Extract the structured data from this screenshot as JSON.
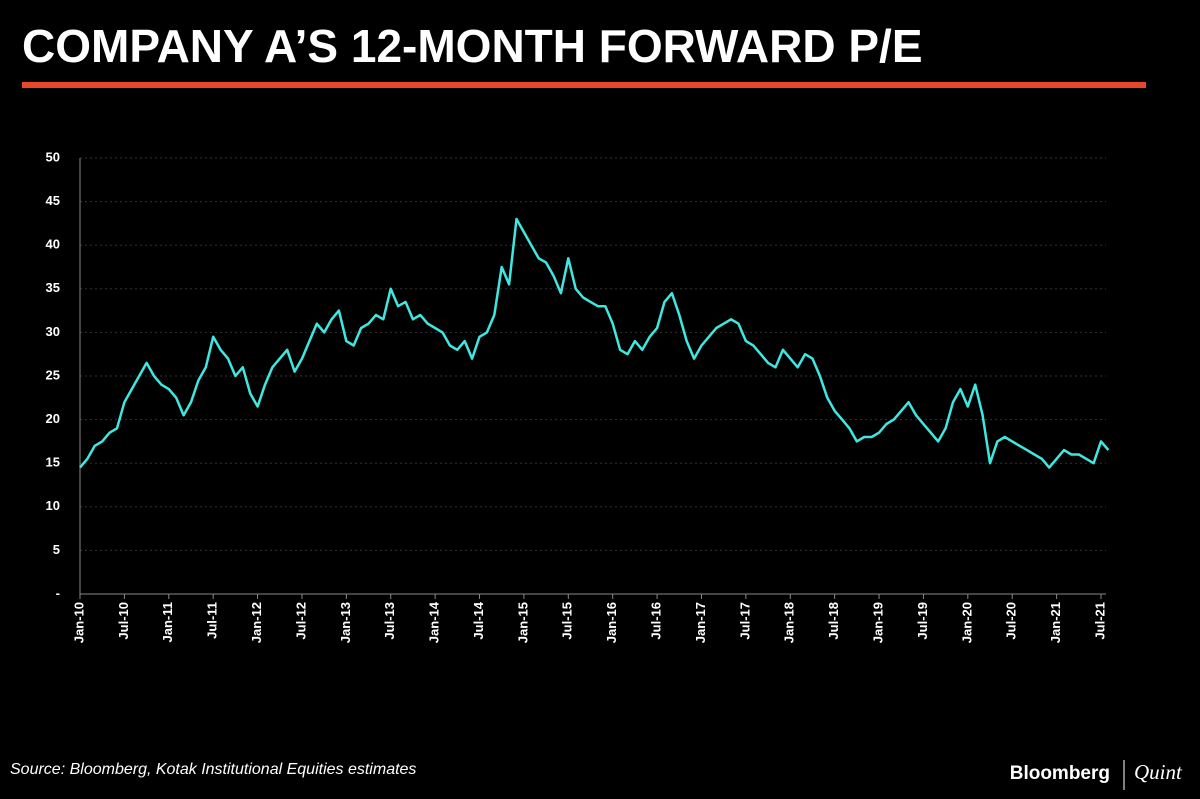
{
  "chart_data": {
    "type": "line",
    "title": "COMPANY A’S 12-MONTH FORWARD P/E",
    "source": "Source: Bloomberg, Kotak Institutional Equities estimates",
    "brand": "Bloomberg",
    "brand_suffix": "Quint",
    "categories": [
      "Jan-10",
      null,
      null,
      null,
      null,
      null,
      "Jul-10",
      null,
      null,
      null,
      null,
      null,
      "Jan-11",
      null,
      null,
      null,
      null,
      null,
      "Jul-11",
      null,
      null,
      null,
      null,
      null,
      "Jan-12",
      null,
      null,
      null,
      null,
      null,
      "Jul-12",
      null,
      null,
      null,
      null,
      null,
      "Jan-13",
      null,
      null,
      null,
      null,
      null,
      "Jul-13",
      null,
      null,
      null,
      null,
      null,
      "Jan-14",
      null,
      null,
      null,
      null,
      null,
      "Jul-14",
      null,
      null,
      null,
      null,
      null,
      "Jan-15",
      null,
      null,
      null,
      null,
      null,
      "Jul-15",
      null,
      null,
      null,
      null,
      null,
      "Jan-16",
      null,
      null,
      null,
      null,
      null,
      "Jul-16",
      null,
      null,
      null,
      null,
      null,
      "Jan-17",
      null,
      null,
      null,
      null,
      null,
      "Jul-17",
      null,
      null,
      null,
      null,
      null,
      "Jan-18",
      null,
      null,
      null,
      null,
      null,
      "Jul-18",
      null,
      null,
      null,
      null,
      null,
      "Jan-19",
      null,
      null,
      null,
      null,
      null,
      "Jul-19",
      null,
      null,
      null,
      null,
      null,
      "Jan-20",
      null,
      null,
      null,
      null,
      null,
      "Jul-20",
      null,
      null,
      null,
      null,
      null,
      "Jan-21",
      null,
      null,
      null,
      null,
      null,
      "Jul-21",
      null
    ],
    "series": [
      {
        "name": "12-month forward P/E",
        "color": "#3ee8e0",
        "values": [
          14.5,
          15.5,
          17,
          17.5,
          18.5,
          19,
          22,
          23.5,
          25,
          26.5,
          25,
          24,
          23.5,
          22.5,
          20.5,
          22,
          24.5,
          26,
          29.5,
          28,
          27,
          25,
          26,
          23,
          21.5,
          24,
          26,
          27,
          28,
          25.5,
          27,
          29,
          31,
          30,
          31.5,
          32.5,
          29,
          28.5,
          30.5,
          31,
          32,
          31.5,
          35,
          33,
          33.5,
          31.5,
          32,
          31,
          30.5,
          30,
          28.5,
          28,
          29,
          27,
          29.5,
          30,
          32,
          37.5,
          35.5,
          43,
          41.5,
          40,
          38.5,
          38,
          36.5,
          34.5,
          38.5,
          35,
          34,
          33.5,
          33,
          33,
          31,
          28,
          27.5,
          29,
          28,
          29.5,
          30.5,
          33.5,
          34.5,
          32,
          29,
          27,
          28.5,
          29.5,
          30.5,
          31,
          31.5,
          31,
          29,
          28.5,
          27.5,
          26.5,
          26,
          28,
          27,
          26,
          27.5,
          27,
          25,
          22.5,
          21,
          20,
          19,
          17.5,
          18,
          18,
          18.5,
          19.5,
          20,
          21,
          22,
          20.5,
          19.5,
          18.5,
          17.5,
          19,
          22,
          23.5,
          21.5,
          24,
          20.5,
          15,
          17.5,
          18,
          17.5,
          17,
          16.5,
          16,
          15.5,
          14.5,
          15.5,
          16.5,
          16,
          16,
          15.5,
          15,
          17.5,
          16.5
        ]
      }
    ],
    "ylim": [
      0,
      50
    ],
    "yticks": [
      {
        "value": 0,
        "label": "-"
      },
      5,
      10,
      15,
      20,
      25,
      30,
      35,
      40,
      45,
      50
    ],
    "grid": true
  }
}
